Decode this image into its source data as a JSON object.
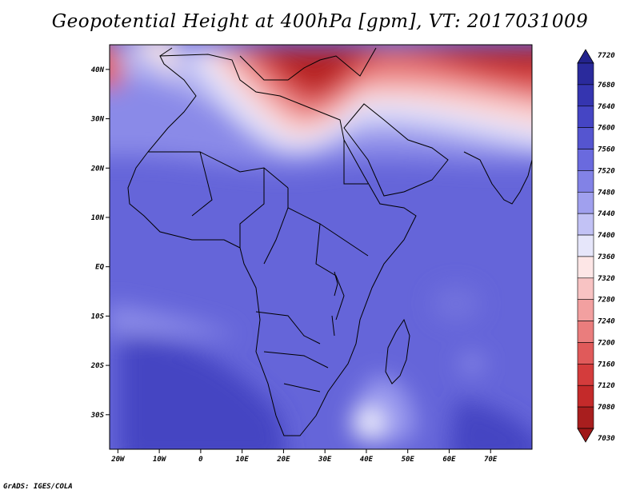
{
  "title": "Geopotential Height at 400hPa [gpm], VT: 2017031009",
  "footer": "GrADS: IGES/COLA",
  "map": {
    "lon_range": [
      -22,
      80
    ],
    "lat_range": [
      -37,
      45
    ],
    "lat_ticks": [
      {
        "value": 40,
        "label": "40N"
      },
      {
        "value": 30,
        "label": "30N"
      },
      {
        "value": 20,
        "label": "20N"
      },
      {
        "value": 10,
        "label": "10N"
      },
      {
        "value": 0,
        "label": "EQ"
      },
      {
        "value": -10,
        "label": "10S"
      },
      {
        "value": -20,
        "label": "20S"
      },
      {
        "value": -30,
        "label": "30S"
      }
    ],
    "lon_ticks": [
      {
        "value": -20,
        "label": "20W"
      },
      {
        "value": -10,
        "label": "10W"
      },
      {
        "value": 0,
        "label": "0"
      },
      {
        "value": 10,
        "label": "10E"
      },
      {
        "value": 20,
        "label": "20E"
      },
      {
        "value": 30,
        "label": "30E"
      },
      {
        "value": 40,
        "label": "40E"
      },
      {
        "value": 50,
        "label": "50E"
      },
      {
        "value": 60,
        "label": "60E"
      },
      {
        "value": 70,
        "label": "70E"
      }
    ]
  },
  "colorbar": {
    "top_value": "7720",
    "bottom_value": "7030",
    "levels": [
      "7680",
      "7640",
      "7600",
      "7560",
      "7520",
      "7480",
      "7440",
      "7400",
      "7360",
      "7320",
      "7280",
      "7240",
      "7200",
      "7160",
      "7120",
      "7080"
    ],
    "colors": [
      "#2a2a9c",
      "#3535b0",
      "#4545c4",
      "#5555d0",
      "#6a6ade",
      "#8282e6",
      "#a0a0ee",
      "#c2c2f5",
      "#e6e6fa",
      "#fde6e6",
      "#f8c3c3",
      "#f2a0a0",
      "#ea7d7d",
      "#e05a5a",
      "#d43c3c",
      "#c42a2a",
      "#a81e1e"
    ],
    "top_color": "#23238c",
    "bottom_color": "#a01818"
  }
}
